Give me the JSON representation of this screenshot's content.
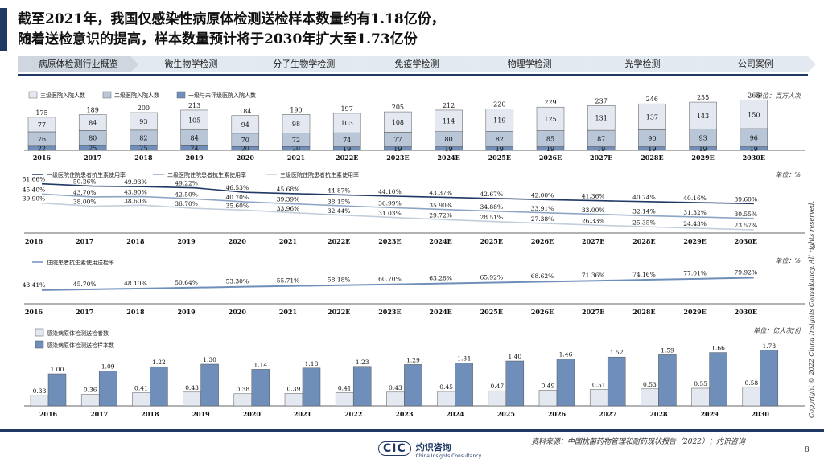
{
  "title": {
    "line1": "截至2021年，我国仅感染性病原体检测送检样本数量约有1.18亿份，",
    "line2": "随着送检意识的提高，样本数量预计将于2030年扩大至1.73亿份"
  },
  "nav": {
    "items": [
      "病原体检测行业概览",
      "微生物学检测",
      "分子生物学检测",
      "免疫学检测",
      "物理学检测",
      "光学检测",
      "公司案例"
    ],
    "active": 0
  },
  "colors": {
    "primary": "#1f3864",
    "bar_dark": "#6f8fba",
    "bar_mid": "#b9c6d8",
    "bar_light": "#e4e9f1",
    "line_light": "#c2cedc",
    "line_mid": "#8da5c4"
  },
  "chart_data": [
    {
      "type": "bar",
      "stacked": true,
      "unit": "单位：百万人次",
      "categories": [
        "2016",
        "2017",
        "2018",
        "2019",
        "2020",
        "2021",
        "2022E",
        "2023E",
        "2024E",
        "2025E",
        "2026E",
        "2027E",
        "2028E",
        "2029E",
        "2030E"
      ],
      "series": [
        {
          "name": "一级与未评级医院入院人数",
          "values": [
            22,
            25,
            25,
            24,
            20,
            20,
            19,
            19,
            19,
            19,
            19,
            19,
            19,
            19,
            19
          ]
        },
        {
          "name": "二级医院入院人数",
          "values": [
            76,
            80,
            82,
            84,
            70,
            72,
            74,
            77,
            80,
            82,
            85,
            87,
            90,
            93,
            96
          ]
        },
        {
          "name": "三级医院入院人数",
          "values": [
            77,
            84,
            93,
            105,
            94,
            98,
            103,
            108,
            114,
            119,
            125,
            131,
            137,
            143,
            150
          ]
        }
      ],
      "totals": [
        175,
        189,
        200,
        213,
        184,
        190,
        197,
        205,
        212,
        220,
        229,
        237,
        246,
        255,
        265
      ]
    },
    {
      "type": "line",
      "unit": "单位：%",
      "categories": [
        "2016",
        "2017",
        "2018",
        "2019",
        "2020",
        "2021",
        "2022E",
        "2023E",
        "2024E",
        "2025E",
        "2026E",
        "2027E",
        "2028E",
        "2029E",
        "2030E"
      ],
      "series": [
        {
          "name": "一级医院住院患者抗生素使用率",
          "values": [
            51.66,
            50.26,
            49.93,
            49.22,
            46.53,
            45.68,
            44.87,
            44.1,
            43.37,
            42.67,
            42.0,
            41.36,
            40.74,
            40.16,
            39.6
          ]
        },
        {
          "name": "二级医院住院患者抗生素使用率",
          "values": [
            45.4,
            43.7,
            43.9,
            42.5,
            40.7,
            39.39,
            38.15,
            36.99,
            35.9,
            34.88,
            33.91,
            33.0,
            32.14,
            31.32,
            30.55
          ]
        },
        {
          "name": "三级医院住院患者抗生素使用率",
          "values": [
            39.9,
            38.0,
            38.6,
            36.7,
            35.6,
            33.96,
            32.44,
            31.03,
            29.72,
            28.51,
            27.38,
            26.33,
            25.35,
            24.43,
            23.57
          ]
        }
      ],
      "labels": {
        "s0": [
          "51.66%",
          "50.26%",
          "49.93%",
          "49.22%",
          "46.53%",
          "45.68%",
          "44.87%",
          "44.10%",
          "43.37%",
          "42.67%",
          "42.00%",
          "41.36%",
          "40.74%",
          "40.16%",
          "39.60%"
        ],
        "s1": [
          "45.40%",
          "43.70%",
          "43.90%",
          "42.50%",
          "40.70%",
          "39.39%",
          "38.15%",
          "36.99%",
          "35.90%",
          "34.88%",
          "33.91%",
          "33.00%",
          "32.14%",
          "31.32%",
          "30.55%"
        ],
        "s2": [
          "39.90%",
          "38.00%",
          "38.60%",
          "36.70%",
          "35.60%",
          "33.96%",
          "32.44%",
          "31.03%",
          "29.72%",
          "28.51%",
          "27.38%",
          "26.33%",
          "25.35%",
          "24.43%",
          "23.57%"
        ]
      }
    },
    {
      "type": "line",
      "unit": "单位：%",
      "categories": [
        "2016",
        "2017",
        "2018",
        "2019",
        "2020",
        "2021",
        "2022E",
        "2023E",
        "2024E",
        "2025E",
        "2026E",
        "2027E",
        "2028E",
        "2029E",
        "2030E"
      ],
      "series": [
        {
          "name": "住院患者抗生素使用送检率",
          "values": [
            43.41,
            45.7,
            48.1,
            50.64,
            53.3,
            55.71,
            58.18,
            60.7,
            63.28,
            65.92,
            68.62,
            71.36,
            74.16,
            77.01,
            79.92
          ]
        }
      ],
      "labels": [
        "43.41%",
        "45.70%",
        "48.10%",
        "50.64%",
        "53.30%",
        "55.71%",
        "58.18%",
        "60.70%",
        "63.28%",
        "65.92%",
        "68.62%",
        "71.36%",
        "74.16%",
        "77.01%",
        "79.92%"
      ]
    },
    {
      "type": "bar",
      "unit": "单位：亿人次/份",
      "categories": [
        "2016",
        "2017",
        "2018",
        "2019",
        "2020",
        "2021",
        "2022",
        "2023",
        "2024",
        "2025",
        "2026",
        "2027",
        "2028",
        "2029",
        "2030"
      ],
      "series": [
        {
          "name": "感染病原体检测送检者数",
          "values": [
            0.33,
            0.36,
            0.41,
            0.43,
            0.38,
            0.39,
            0.41,
            0.43,
            0.45,
            0.47,
            0.49,
            0.51,
            0.53,
            0.55,
            0.58
          ]
        },
        {
          "name": "感染病原体检测送检样本数",
          "values": [
            1.0,
            1.09,
            1.22,
            1.3,
            1.14,
            1.18,
            1.23,
            1.29,
            1.34,
            1.4,
            1.46,
            1.52,
            1.59,
            1.66,
            1.73
          ]
        }
      ],
      "labels": {
        "s0": [
          "0.33",
          "0.36",
          "0.41",
          "0.43",
          "0.38",
          "0.39",
          "0.41",
          "0.43",
          "0.45",
          "0.47",
          "0.49",
          "0.51",
          "0.53",
          "0.55",
          "0.58"
        ],
        "s1": [
          "1.00",
          "1.09",
          "1.22",
          "1.30",
          "1.14",
          "1.18",
          "1.23",
          "1.29",
          "1.34",
          "1.40",
          "1.46",
          "1.52",
          "1.59",
          "1.66",
          "1.73"
        ]
      }
    }
  ],
  "copyright": "Copyright © 2022 China Insights Consultancy. All rights reserved.",
  "source": "资料来源：中国抗菌药物管理和耐药现状报告（2022）；灼识咨询",
  "logo": {
    "mark": "CIC",
    "cn": "灼识咨询",
    "en": "China Insights Consultancy"
  },
  "page_number": "8"
}
